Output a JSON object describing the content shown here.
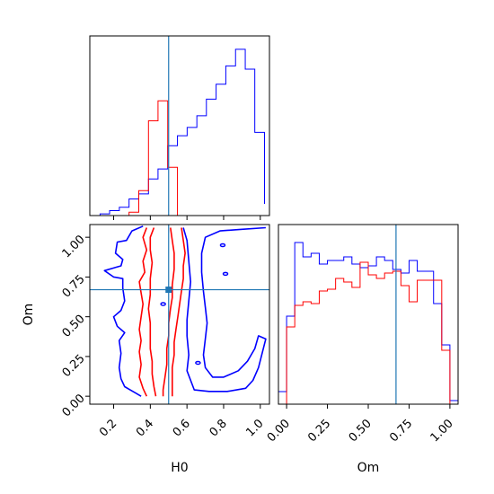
{
  "chart_data": {
    "type": "corner",
    "parameters": [
      "H0",
      "Om"
    ],
    "truth": {
      "H0": 0.5,
      "Om": 0.67
    },
    "colors": {
      "series_a": "#0000ff",
      "series_b": "#ff0000",
      "truth": "#1f77b4"
    },
    "panels": [
      {
        "id": "hist-H0",
        "type": "step-histogram",
        "xlim": [
          0.07,
          1.05
        ],
        "ylim": [
          0,
          1.08
        ],
        "xticks": [
          0.2,
          0.4,
          0.6,
          0.8,
          1.0
        ],
        "yticks_shown": false,
        "bins": [
          0.073,
          0.126,
          0.178,
          0.231,
          0.284,
          0.337,
          0.39,
          0.442,
          0.495,
          0.548,
          0.601,
          0.654,
          0.706,
          0.759,
          0.812,
          0.865,
          0.918,
          0.97,
          1.023
        ],
        "series": [
          {
            "name": "",
            "color": "#0000ff",
            "counts": [
              0.0,
              0.01,
              0.03,
              0.05,
              0.1,
              0.13,
              0.22,
              0.28,
              0.42,
              0.48,
              0.53,
              0.6,
              0.7,
              0.79,
              0.9,
              1.0,
              0.88,
              0.5,
              0.07
            ]
          },
          {
            "name": "",
            "color": "#ff0000",
            "counts": [
              0.0,
              0.0,
              0.0,
              0.0,
              0.02,
              0.15,
              0.57,
              0.69,
              0.29,
              0.0,
              0.0,
              0.0,
              0.0,
              0.0,
              0.0,
              0.0,
              0.0,
              0.0,
              0.0
            ]
          }
        ]
      },
      {
        "id": "contour-H0-Om",
        "type": "contour",
        "xlabel": "H0",
        "ylabel": "Om",
        "xlim": [
          0.07,
          1.05
        ],
        "ylim": [
          -0.05,
          1.08
        ],
        "xticks": [
          0.2,
          0.4,
          0.6,
          0.8,
          1.0
        ],
        "yticks": [
          0.0,
          0.25,
          0.5,
          0.75,
          1.0
        ],
        "series": [
          {
            "name": "",
            "color": "#0000ff",
            "contours": [
              [
                [
                  0.36,
                  1.07
                ],
                [
                  0.3,
                  1.04
                ],
                [
                  0.27,
                  0.98
                ],
                [
                  0.22,
                  0.97
                ],
                [
                  0.21,
                  0.9
                ],
                [
                  0.25,
                  0.86
                ],
                [
                  0.24,
                  0.82
                ],
                [
                  0.15,
                  0.79
                ],
                [
                  0.2,
                  0.75
                ],
                [
                  0.25,
                  0.74
                ],
                [
                  0.25,
                  0.68
                ],
                [
                  0.26,
                  0.6
                ],
                [
                  0.24,
                  0.54
                ],
                [
                  0.2,
                  0.5
                ],
                [
                  0.22,
                  0.44
                ],
                [
                  0.26,
                  0.4
                ],
                [
                  0.23,
                  0.35
                ],
                [
                  0.24,
                  0.27
                ],
                [
                  0.23,
                  0.18
                ],
                [
                  0.24,
                  0.11
                ],
                [
                  0.26,
                  0.06
                ],
                [
                  0.29,
                  0.04
                ],
                [
                  0.32,
                  0.02
                ],
                [
                  0.35,
                  0.0
                ]
              ],
              [
                [
                  0.58,
                  1.06
                ],
                [
                  0.6,
                  0.98
                ],
                [
                  0.61,
                  0.85
                ],
                [
                  0.62,
                  0.72
                ],
                [
                  0.61,
                  0.6
                ],
                [
                  0.6,
                  0.48
                ],
                [
                  0.6,
                  0.38
                ],
                [
                  0.61,
                  0.26
                ],
                [
                  0.6,
                  0.16
                ],
                [
                  0.64,
                  0.04
                ],
                [
                  0.72,
                  0.03
                ],
                [
                  0.82,
                  0.03
                ],
                [
                  0.92,
                  0.05
                ],
                [
                  0.96,
                  0.1
                ],
                [
                  0.99,
                  0.18
                ],
                [
                  1.03,
                  0.36
                ],
                [
                  0.99,
                  0.38
                ],
                [
                  0.97,
                  0.3
                ],
                [
                  0.93,
                  0.22
                ],
                [
                  0.88,
                  0.16
                ],
                [
                  0.8,
                  0.12
                ],
                [
                  0.74,
                  0.12
                ],
                [
                  0.7,
                  0.18
                ],
                [
                  0.69,
                  0.26
                ],
                [
                  0.7,
                  0.36
                ],
                [
                  0.71,
                  0.46
                ],
                [
                  0.7,
                  0.56
                ],
                [
                  0.69,
                  0.66
                ],
                [
                  0.68,
                  0.78
                ],
                [
                  0.68,
                  0.9
                ],
                [
                  0.7,
                  1.0
                ],
                [
                  0.78,
                  1.04
                ],
                [
                  0.9,
                  1.05
                ],
                [
                  1.03,
                  1.06
                ]
              ]
            ]
          },
          {
            "name": "",
            "color": "#ff0000",
            "contours": [
              [
                [
                  0.38,
                  1.06
                ],
                [
                  0.36,
                  1.0
                ],
                [
                  0.38,
                  0.92
                ],
                [
                  0.36,
                  0.85
                ],
                [
                  0.37,
                  0.78
                ],
                [
                  0.34,
                  0.72
                ],
                [
                  0.35,
                  0.65
                ],
                [
                  0.36,
                  0.58
                ],
                [
                  0.35,
                  0.5
                ],
                [
                  0.34,
                  0.42
                ],
                [
                  0.35,
                  0.35
                ],
                [
                  0.34,
                  0.28
                ],
                [
                  0.35,
                  0.2
                ],
                [
                  0.34,
                  0.12
                ],
                [
                  0.36,
                  0.05
                ],
                [
                  0.38,
                  0.0
                ]
              ],
              [
                [
                  0.42,
                  1.06
                ],
                [
                  0.4,
                  1.0
                ],
                [
                  0.4,
                  0.92
                ],
                [
                  0.41,
                  0.84
                ],
                [
                  0.4,
                  0.74
                ],
                [
                  0.4,
                  0.64
                ],
                [
                  0.39,
                  0.55
                ],
                [
                  0.4,
                  0.46
                ],
                [
                  0.4,
                  0.38
                ],
                [
                  0.4,
                  0.3
                ],
                [
                  0.41,
                  0.22
                ],
                [
                  0.41,
                  0.14
                ],
                [
                  0.42,
                  0.06
                ],
                [
                  0.43,
                  0.0
                ]
              ],
              [
                [
                  0.51,
                  1.06
                ],
                [
                  0.52,
                  0.98
                ],
                [
                  0.53,
                  0.9
                ],
                [
                  0.53,
                  0.8
                ],
                [
                  0.52,
                  0.7
                ],
                [
                  0.52,
                  0.62
                ],
                [
                  0.51,
                  0.55
                ],
                [
                  0.5,
                  0.46
                ],
                [
                  0.5,
                  0.38
                ],
                [
                  0.49,
                  0.3
                ],
                [
                  0.49,
                  0.2
                ],
                [
                  0.48,
                  0.12
                ],
                [
                  0.47,
                  0.04
                ],
                [
                  0.47,
                  0.0
                ]
              ],
              [
                [
                  0.57,
                  1.06
                ],
                [
                  0.58,
                  0.98
                ],
                [
                  0.59,
                  0.9
                ],
                [
                  0.58,
                  0.82
                ],
                [
                  0.58,
                  0.74
                ],
                [
                  0.57,
                  0.66
                ],
                [
                  0.56,
                  0.58
                ],
                [
                  0.55,
                  0.5
                ],
                [
                  0.54,
                  0.42
                ],
                [
                  0.53,
                  0.34
                ],
                [
                  0.53,
                  0.26
                ],
                [
                  0.52,
                  0.18
                ],
                [
                  0.52,
                  0.1
                ],
                [
                  0.52,
                  0.04
                ],
                [
                  0.52,
                  0.0
                ]
              ]
            ]
          }
        ]
      },
      {
        "id": "hist-Om",
        "type": "step-histogram",
        "xlabel": "Om",
        "xlim": [
          -0.05,
          1.05
        ],
        "ylim": [
          0,
          1.0
        ],
        "xticks": [
          0.0,
          0.25,
          0.5,
          0.75,
          1.0
        ],
        "yticks_shown": false,
        "bins": [
          -0.05,
          0.0,
          0.05,
          0.1,
          0.15,
          0.2,
          0.25,
          0.3,
          0.35,
          0.4,
          0.45,
          0.5,
          0.55,
          0.6,
          0.65,
          0.7,
          0.75,
          0.8,
          0.85,
          0.9,
          0.95,
          1.0,
          1.05
        ],
        "series": [
          {
            "name": "",
            "color": "#0000ff",
            "counts": [
              0.07,
              0.49,
              0.9,
              0.82,
              0.84,
              0.78,
              0.8,
              0.8,
              0.82,
              0.78,
              0.76,
              0.77,
              0.82,
              0.8,
              0.75,
              0.73,
              0.8,
              0.74,
              0.74,
              0.56,
              0.33,
              0.02
            ]
          },
          {
            "name": "",
            "color": "#ff0000",
            "counts": [
              0.0,
              0.43,
              0.55,
              0.57,
              0.56,
              0.63,
              0.64,
              0.7,
              0.68,
              0.65,
              0.79,
              0.72,
              0.7,
              0.73,
              0.74,
              0.66,
              0.57,
              0.69,
              0.69,
              0.69,
              0.3,
              0.0
            ]
          }
        ]
      }
    ]
  }
}
